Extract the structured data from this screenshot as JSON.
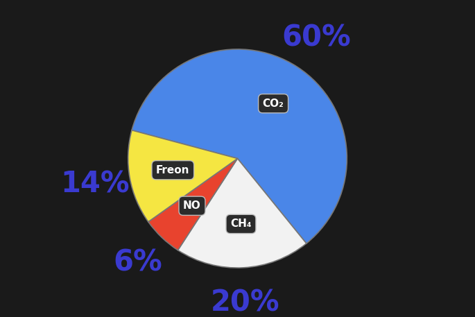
{
  "chart_data": {
    "type": "pie",
    "categories": [
      "CO₂",
      "CH₄",
      "NO",
      "Freon"
    ],
    "values": [
      60,
      20,
      6,
      14
    ],
    "value_labels": [
      "60%",
      "20%",
      "6%",
      "14%"
    ],
    "colors": [
      "#4a86e8",
      "#f2f2f2",
      "#e8432e",
      "#f5e642"
    ],
    "data_labels": true
  }
}
